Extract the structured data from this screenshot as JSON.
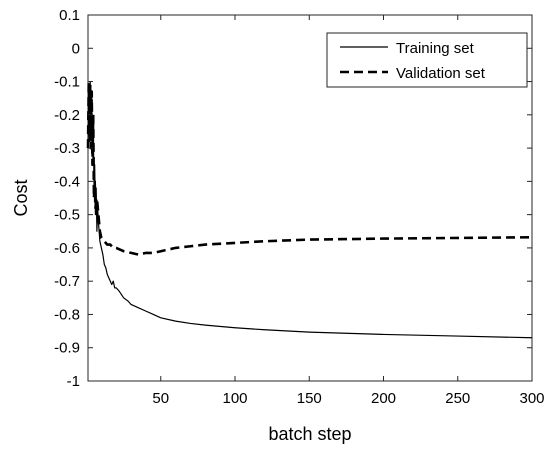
{
  "chart_data": {
    "type": "line",
    "xlabel": "batch step",
    "ylabel": "Cost",
    "xlim": [
      1,
      300
    ],
    "ylim": [
      -1,
      0.1
    ],
    "xticks": [
      50,
      100,
      150,
      200,
      250,
      300
    ],
    "yticks": [
      0.1,
      0,
      -0.1,
      -0.2,
      -0.3,
      -0.4,
      -0.5,
      -0.6,
      -0.7,
      -0.8,
      -0.9,
      -1
    ],
    "ytick_labels": [
      "0.1",
      "0",
      "-0.1",
      "-0.2",
      "-0.3",
      "-0.4",
      "-0.5",
      "-0.6",
      "-0.7",
      "-0.8",
      "-0.9",
      "-1"
    ],
    "xtick_labels": [
      "50",
      "100",
      "150",
      "200",
      "250",
      "300"
    ],
    "grid": false,
    "legend_position": "top-right",
    "series": [
      {
        "name": "Training set",
        "style": "solid",
        "color": "#000000",
        "x": [
          1,
          1.5,
          2,
          2.5,
          3,
          3.5,
          4,
          4.5,
          5,
          5.5,
          6,
          6.5,
          7,
          7.5,
          8,
          9,
          10,
          11,
          12,
          13,
          14,
          15,
          16,
          17,
          18,
          19,
          20,
          22,
          25,
          28,
          30,
          35,
          40,
          45,
          50,
          60,
          70,
          80,
          100,
          120,
          150,
          200,
          250,
          300
        ],
        "y": [
          -0.3,
          -0.12,
          -0.28,
          -0.1,
          -0.25,
          -0.15,
          -0.3,
          -0.22,
          -0.4,
          -0.35,
          -0.5,
          -0.42,
          -0.55,
          -0.48,
          -0.52,
          -0.58,
          -0.6,
          -0.62,
          -0.65,
          -0.66,
          -0.68,
          -0.69,
          -0.7,
          -0.71,
          -0.7,
          -0.72,
          -0.72,
          -0.73,
          -0.75,
          -0.76,
          -0.77,
          -0.78,
          -0.79,
          -0.8,
          -0.81,
          -0.82,
          -0.827,
          -0.832,
          -0.84,
          -0.846,
          -0.853,
          -0.86,
          -0.865,
          -0.87
        ]
      },
      {
        "name": "Validation set",
        "style": "dashed",
        "color": "#000000",
        "x": [
          1,
          1.5,
          2,
          2.5,
          3,
          3.5,
          4,
          4.5,
          5,
          5.5,
          6,
          6.5,
          7,
          8,
          9,
          10,
          12,
          14,
          16,
          18,
          20,
          25,
          30,
          35,
          40,
          45,
          50,
          55,
          60,
          70,
          80,
          100,
          120,
          150,
          200,
          250,
          300
        ],
        "y": [
          -0.3,
          -0.1,
          -0.25,
          -0.11,
          -0.3,
          -0.13,
          -0.35,
          -0.2,
          -0.45,
          -0.4,
          -0.48,
          -0.46,
          -0.45,
          -0.5,
          -0.55,
          -0.57,
          -0.58,
          -0.59,
          -0.59,
          -0.6,
          -0.6,
          -0.61,
          -0.615,
          -0.62,
          -0.615,
          -0.615,
          -0.61,
          -0.605,
          -0.6,
          -0.595,
          -0.59,
          -0.585,
          -0.58,
          -0.575,
          -0.572,
          -0.57,
          -0.568
        ]
      }
    ]
  }
}
